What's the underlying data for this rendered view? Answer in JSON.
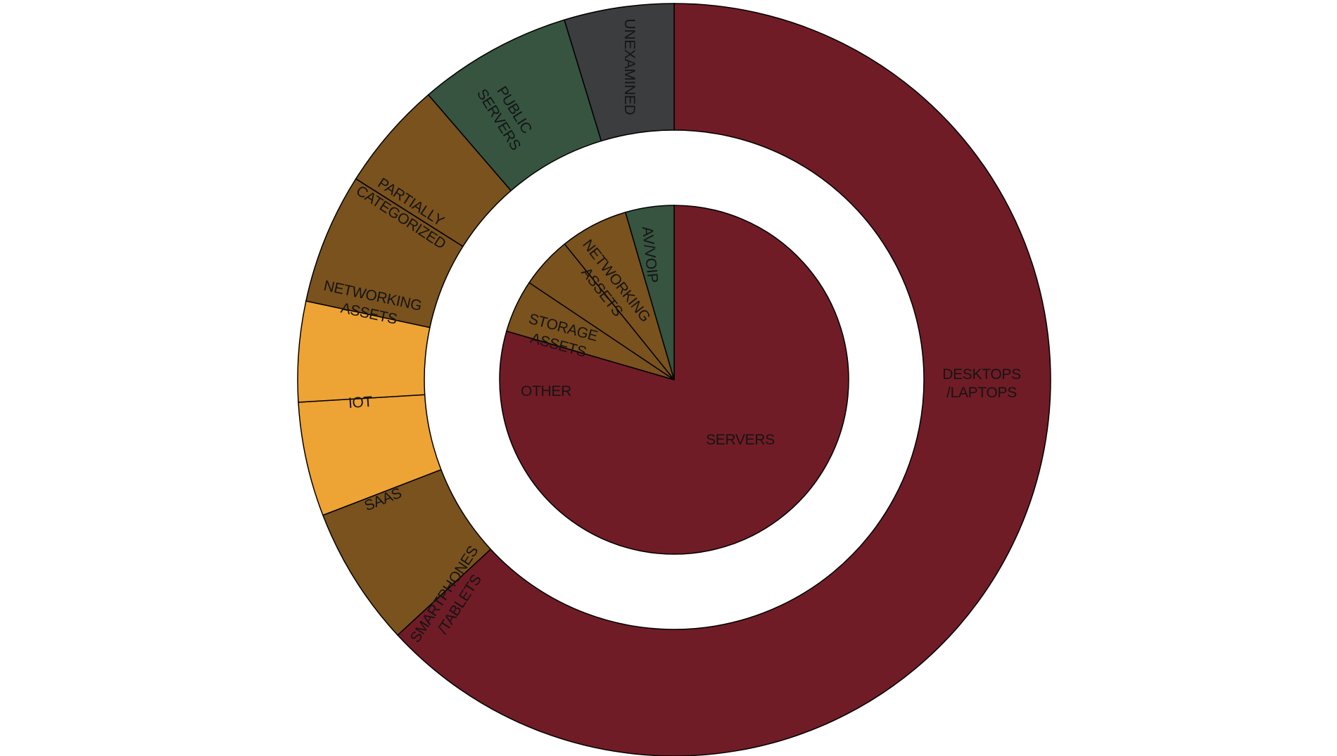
{
  "chart_data": [
    {
      "type": "pie",
      "ring": "outer",
      "slices": [
        {
          "label": [
            "DESKTOPS",
            "/LAPTOPS"
          ],
          "value": 63.0,
          "color": "#701c26"
        },
        {
          "label": [
            "SMARTPHONES",
            "/TABLETS"
          ],
          "value": 6.0,
          "color": "#7a521d"
        },
        {
          "label": [
            "SAAS"
          ],
          "value": 4.9,
          "color": "#eea335"
        },
        {
          "label": [
            "IOT"
          ],
          "value": 4.3,
          "color": "#eea335"
        },
        {
          "label": [
            "NETWORKING",
            "ASSETS"
          ],
          "value": 5.6,
          "color": "#7a521d"
        },
        {
          "label": [
            "PARTIALLY",
            "CATEGORIZED"
          ],
          "value": 4.7,
          "color": "#7a521d"
        },
        {
          "label": [
            "PUBLIC",
            "SERVERS"
          ],
          "value": 6.6,
          "color": "#365440"
        },
        {
          "label": [
            "UNEXAMINED"
          ],
          "value": 4.7,
          "color": "#3c3d3f"
        }
      ]
    },
    {
      "type": "pie",
      "ring": "inner",
      "slices": [
        {
          "label": [
            "SERVERS"
          ],
          "value": 79.5,
          "color": "#701c26"
        },
        {
          "label": [
            "OTHER"
          ],
          "value": 4.9,
          "color": "#7a521d"
        },
        {
          "label": [
            "STORAGE",
            "ASSETS"
          ],
          "value": 4.8,
          "color": "#7a521d"
        },
        {
          "label": [
            "NETWORKING",
            "ASSETS"
          ],
          "value": 6.3,
          "color": "#7a521d"
        },
        {
          "label": [
            "AV/VOIP"
          ],
          "value": 4.5,
          "color": "#365440"
        }
      ]
    }
  ]
}
